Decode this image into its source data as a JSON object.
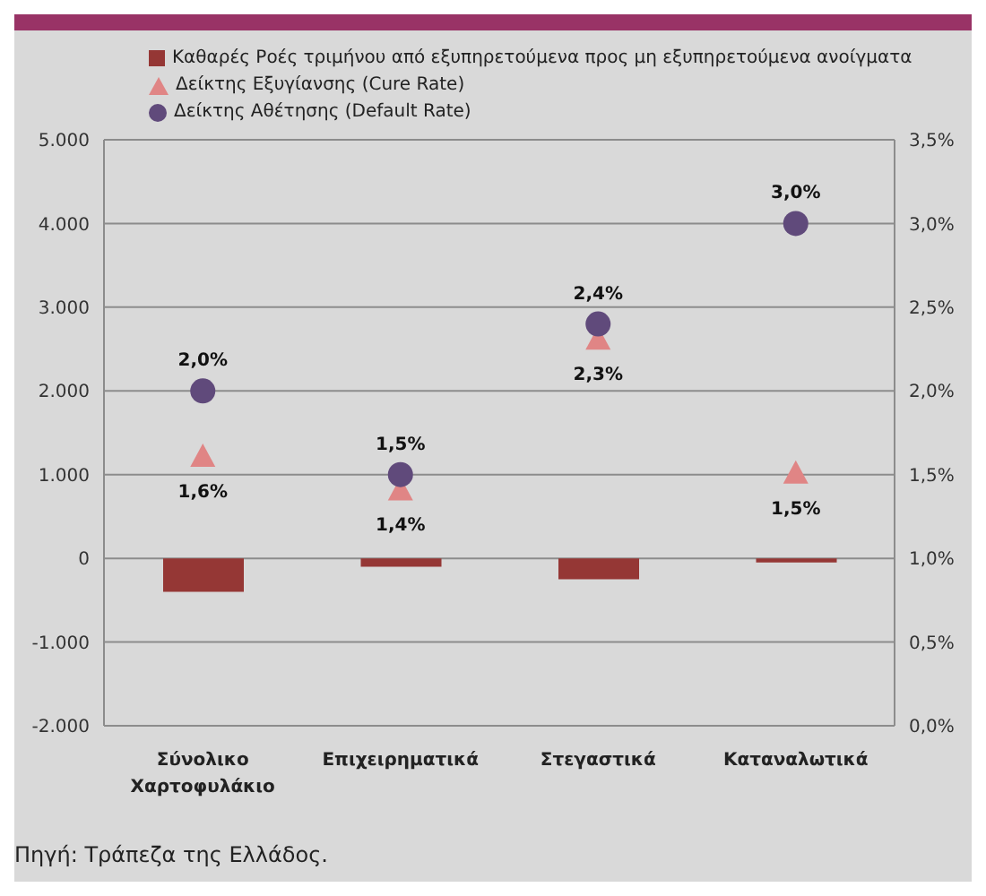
{
  "chart_data": {
    "type": "bar",
    "categories": [
      "Σύνολικο Χαρτοφυλάκιο",
      "Επιχειρηματικά",
      "Στεγαστικά",
      "Καταναλωτικά"
    ],
    "series": [
      {
        "name": "Καθαρές Ροές τριμήνου από εξυπηρετούμενα προς μη εξυπηρετούμενα ανοίγματα",
        "color": "#953735",
        "values": [
          -400,
          -100,
          -250,
          -50
        ]
      },
      {
        "name": "Δείκτης Εξυγίανσης (Cure Rate)",
        "type": "scatter",
        "marker": "triangle",
        "axis": "y2",
        "color": "#e08585",
        "values": [
          1.6,
          1.4,
          2.3,
          1.5
        ],
        "value_labels": [
          "1,6%",
          "1,4%",
          "2,3%",
          "1,5%"
        ]
      },
      {
        "name": "Δείκτης Αθέτησης (Default Rate)",
        "type": "scatter",
        "marker": "circle",
        "axis": "y2",
        "color": "#604a7b",
        "values": [
          2.0,
          1.5,
          2.4,
          3.0
        ],
        "value_labels": [
          "2,0%",
          "1,5%",
          "2,4%",
          "3,0%"
        ]
      }
    ],
    "ylim": [
      -2000,
      5000
    ],
    "yticks": [
      {
        "value": -2000,
        "label": "-2.000"
      },
      {
        "value": -1000,
        "label": "-1.000"
      },
      0,
      {
        "value": 1000,
        "label": "1.000"
      },
      {
        "value": 2000,
        "label": "2.000"
      },
      {
        "value": 3000,
        "label": "3.000"
      },
      {
        "value": 4000,
        "label": "4.000"
      },
      {
        "value": 5000,
        "label": "5.000"
      }
    ],
    "y2lim": [
      0,
      3.5
    ],
    "y2ticks": [
      {
        "value": 0,
        "label": "0,0%"
      },
      {
        "value": 0.5,
        "label": "0,5%"
      },
      {
        "value": 1,
        "label": "1,0%"
      },
      {
        "value": 1.5,
        "label": "1,5%"
      },
      {
        "value": 2,
        "label": "2,0%"
      },
      {
        "value": 2.5,
        "label": "2,5%"
      },
      {
        "value": 3,
        "label": "3,0%"
      },
      {
        "value": 3.5,
        "label": "3,5%"
      }
    ],
    "grid": "y",
    "legend": "top left",
    "annotations": [
      "Πηγή: Τράπεζα της Ελλάδος."
    ]
  }
}
